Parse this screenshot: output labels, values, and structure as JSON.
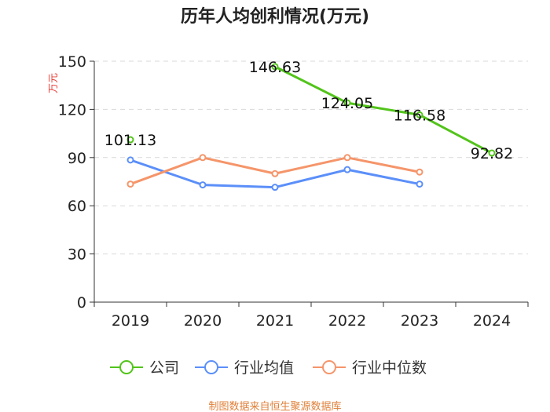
{
  "chart_data": {
    "type": "line",
    "title": "历年人均创利情况(万元)",
    "ylabel": "万元",
    "xlabel": "",
    "categories": [
      "2019",
      "2020",
      "2021",
      "2022",
      "2023",
      "2024"
    ],
    "ylim": [
      0,
      150
    ],
    "yticks": [
      0,
      30,
      60,
      90,
      120,
      150
    ],
    "grid": true,
    "legend_position": "bottom",
    "series": [
      {
        "name": "公司",
        "color": "#52c41a",
        "values": [
          101.13,
          null,
          146.63,
          124.05,
          116.58,
          92.82
        ],
        "labels": [
          "101.13",
          null,
          "146.63",
          "124.05",
          "116.58",
          "92.82"
        ]
      },
      {
        "name": "行业均值",
        "color": "#5b8ff9",
        "values": [
          88.5,
          73,
          71.5,
          82.5,
          73.5,
          null
        ]
      },
      {
        "name": "行业中位数",
        "color": "#f5956a",
        "values": [
          73.5,
          90,
          80,
          90,
          81,
          null
        ]
      }
    ],
    "source": "制图数据来自恒生聚源数据库"
  }
}
